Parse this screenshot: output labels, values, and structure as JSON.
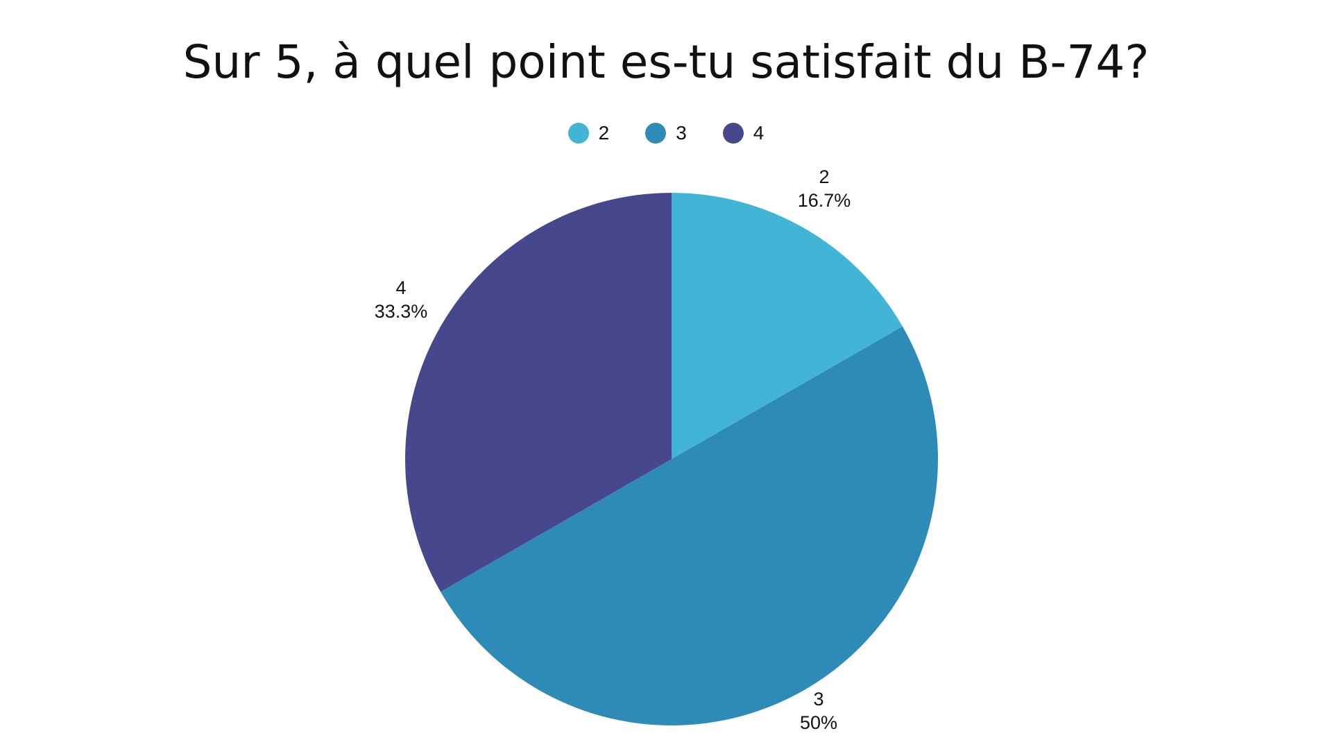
{
  "chart_data": {
    "type": "pie",
    "title": "Sur 5, à quel point es-tu satisfait du B-74?",
    "categories": [
      "2",
      "3",
      "4"
    ],
    "values": [
      16.7,
      50,
      33.3
    ],
    "data_labels": [
      "16.7%",
      "50%",
      "33.3%"
    ],
    "colors": [
      "#42b4d5",
      "#2e8bb8",
      "#46478c"
    ],
    "legend": {
      "placement": "top-center",
      "entries": [
        "2",
        "3",
        "4"
      ]
    },
    "start_angle": "12 o'clock",
    "direction": "clockwise"
  }
}
